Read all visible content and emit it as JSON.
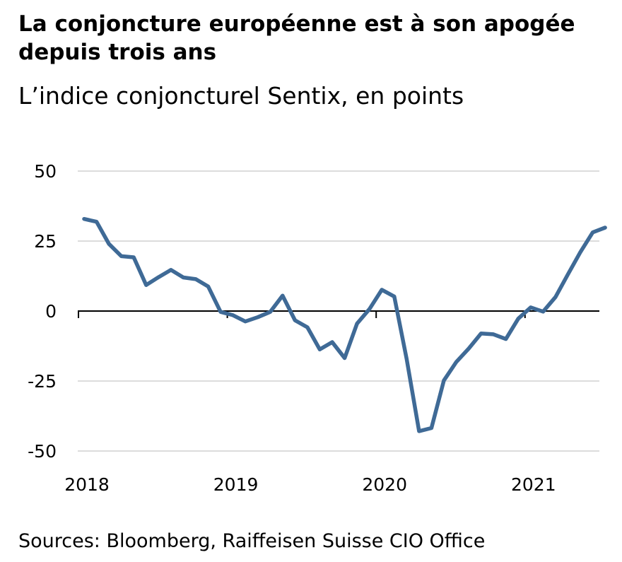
{
  "title": "La conjoncture européenne est à son apogée depuis trois ans",
  "subtitle": "L’indice conjoncturel Sentix, en points",
  "source": "Sources: Bloomberg, Raiffeisen Suisse CIO Office",
  "colors": {
    "line": "#3f6a96",
    "grid": "#c8c8c8",
    "zero_axis": "#000000"
  },
  "chart_data": {
    "type": "line",
    "title": "La conjoncture européenne est à son apogée depuis trois ans",
    "subtitle": "L’indice conjoncturel Sentix, en points",
    "xlabel": "",
    "ylabel": "",
    "xlim": [
      "2018-01",
      "2021-07"
    ],
    "ylim": [
      -50,
      50
    ],
    "y_ticks": [
      50,
      25,
      0,
      -25,
      -50
    ],
    "y_tick_labels": [
      "50",
      "25",
      "0",
      "-25",
      "-50"
    ],
    "x_tick_labels": [
      "2018",
      "2019",
      "2020",
      "2021"
    ],
    "grid": true,
    "legend": "none",
    "series": [
      {
        "x": [
          "2018-01",
          "2018-02",
          "2018-03",
          "2018-04",
          "2018-05",
          "2018-06",
          "2018-07",
          "2018-08",
          "2018-09",
          "2018-10",
          "2018-11",
          "2018-12",
          "2019-01",
          "2019-02",
          "2019-03",
          "2019-04",
          "2019-05",
          "2019-06",
          "2019-07",
          "2019-08",
          "2019-09",
          "2019-10",
          "2019-11",
          "2019-12",
          "2020-01",
          "2020-02",
          "2020-03",
          "2020-04",
          "2020-05",
          "2020-06",
          "2020-07",
          "2020-08",
          "2020-09",
          "2020-10",
          "2020-11",
          "2020-12",
          "2021-01",
          "2021-02",
          "2021-03",
          "2021-04",
          "2021-05",
          "2021-06",
          "2021-07"
        ],
        "values": [
          32.9,
          31.9,
          24.0,
          19.6,
          19.2,
          9.3,
          12.1,
          14.7,
          12.0,
          11.4,
          8.8,
          -0.3,
          -1.5,
          -3.7,
          -2.2,
          -0.3,
          5.5,
          -3.3,
          -5.8,
          -13.7,
          -11.1,
          -16.8,
          -4.5,
          0.7,
          7.6,
          5.2,
          -17.1,
          -42.9,
          -41.8,
          -24.8,
          -18.2,
          -13.4,
          -8.0,
          -8.3,
          -10.0,
          -2.7,
          1.3,
          -0.2,
          5.0,
          13.1,
          21.0,
          28.1,
          29.8
        ]
      }
    ]
  }
}
